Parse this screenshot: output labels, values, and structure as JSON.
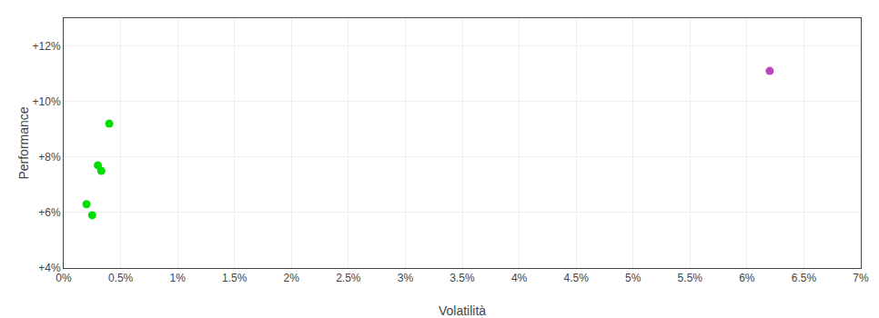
{
  "chart_data": {
    "type": "scatter",
    "xlabel": "Volatilità",
    "ylabel": "Performance",
    "xlim": [
      0,
      0.07
    ],
    "ylim": [
      0.04,
      0.13
    ],
    "xticks": [
      {
        "value": 0.0,
        "label": "0%"
      },
      {
        "value": 0.005,
        "label": "0.5%"
      },
      {
        "value": 0.01,
        "label": "1%"
      },
      {
        "value": 0.015,
        "label": "1.5%"
      },
      {
        "value": 0.02,
        "label": "2%"
      },
      {
        "value": 0.025,
        "label": "2.5%"
      },
      {
        "value": 0.03,
        "label": "3%"
      },
      {
        "value": 0.035,
        "label": "3.5%"
      },
      {
        "value": 0.04,
        "label": "4%"
      },
      {
        "value": 0.045,
        "label": "4.5%"
      },
      {
        "value": 0.05,
        "label": "5%"
      },
      {
        "value": 0.055,
        "label": "5.5%"
      },
      {
        "value": 0.06,
        "label": "6%"
      },
      {
        "value": 0.065,
        "label": "6.5%"
      },
      {
        "value": 0.07,
        "label": "7%"
      }
    ],
    "yticks": [
      {
        "value": 0.04,
        "label": "+4%"
      },
      {
        "value": 0.06,
        "label": "+6%"
      },
      {
        "value": 0.08,
        "label": "+8%"
      },
      {
        "value": 0.1,
        "label": "+10%"
      },
      {
        "value": 0.12,
        "label": "+12%"
      }
    ],
    "grid": true,
    "series": [
      {
        "color": "#00dd00",
        "x": [
          0.002,
          0.0025,
          0.003,
          0.0033,
          0.004
        ],
        "values": [
          0.063,
          0.059,
          0.077,
          0.075,
          0.092
        ]
      },
      {
        "color": "#bb44bb",
        "x": [
          0.062
        ],
        "values": [
          0.111
        ]
      }
    ]
  }
}
